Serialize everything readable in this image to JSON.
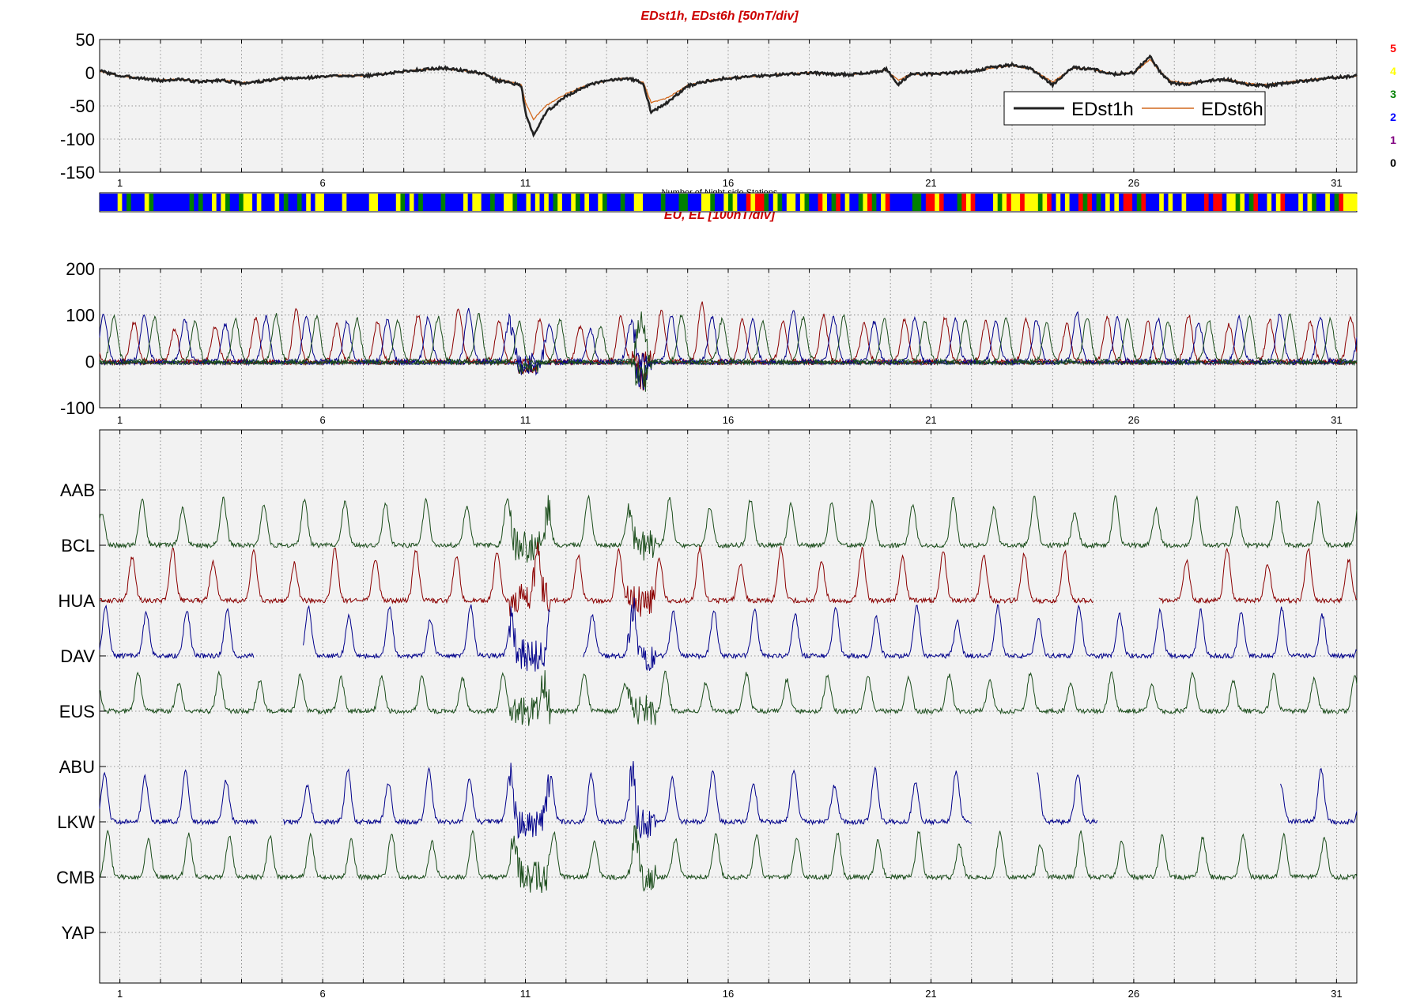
{
  "panels": {
    "dst": {
      "title": "EDst1h, EDst6h [50nT/div]",
      "ylim": [
        -150,
        50
      ],
      "yticks": [
        50,
        0,
        -50,
        -100,
        -150
      ],
      "legend": [
        "EDst1h",
        "EDst6h"
      ],
      "legend_position": "top-right"
    },
    "colorbar": {
      "caption": "Number of Night-side Stations",
      "scale_labels": [
        "5",
        "4",
        "3",
        "2",
        "1",
        "0"
      ],
      "scale_colors": [
        "#ff0000",
        "#ffff00",
        "#008000",
        "#0000ff",
        "#800080",
        "#000000"
      ]
    },
    "eu": {
      "title": "EU, EL   [100nT/div]",
      "ylim": [
        -100,
        200
      ],
      "yticks": [
        200,
        100,
        0,
        -100
      ]
    },
    "stations": {
      "labels": [
        "AAB",
        "BCL",
        "HUA",
        "DAV",
        "EUS",
        "ABU",
        "LKW",
        "CMB",
        "YAP"
      ]
    }
  },
  "x_axis": {
    "range": [
      0.5,
      31.5
    ],
    "tick_labels": [
      "1",
      "6",
      "11",
      "16",
      "21",
      "26",
      "31"
    ]
  },
  "chart_data": [
    {
      "type": "line",
      "title": "EDst1h, EDst6h [50nT/div]",
      "x_unit": "day",
      "xlim": [
        0.5,
        31.5
      ],
      "ylim": [
        -150,
        50
      ],
      "grid": true,
      "legend": "top-right",
      "series": [
        {
          "name": "EDst1h",
          "color": "#222222",
          "x": [
            0.5,
            1,
            1.5,
            2,
            2.5,
            3,
            3.5,
            4,
            4.5,
            5,
            5.5,
            6,
            6.5,
            7,
            7.5,
            8,
            8.5,
            9,
            9.5,
            10,
            10.3,
            10.6,
            10.9,
            11.0,
            11.2,
            11.5,
            12,
            12.5,
            13,
            13.5,
            13.9,
            14.1,
            14.5,
            15,
            15.5,
            16,
            16.5,
            17,
            17.5,
            18,
            18.5,
            19,
            19.5,
            19.9,
            20.2,
            20.5,
            21,
            21.5,
            22,
            22.5,
            23,
            23.5,
            24,
            24.5,
            25,
            25.5,
            26,
            26.4,
            26.6,
            26.9,
            27.3,
            27.8,
            28.3,
            28.8,
            29.3,
            29.8,
            30.3,
            30.8,
            31.5
          ],
          "y": [
            3,
            -5,
            -8,
            -12,
            -10,
            -14,
            -11,
            -16,
            -13,
            -9,
            -8,
            -6,
            -4,
            -5,
            -2,
            2,
            5,
            7,
            3,
            -2,
            -12,
            -14,
            -20,
            -60,
            -95,
            -60,
            -35,
            -20,
            -12,
            -8,
            -15,
            -60,
            -45,
            -20,
            -12,
            -8,
            -6,
            -4,
            -2,
            0,
            -2,
            -3,
            0,
            5,
            -18,
            -2,
            -2,
            0,
            2,
            8,
            12,
            5,
            -18,
            8,
            5,
            -2,
            0,
            25,
            5,
            -15,
            -18,
            -12,
            -10,
            -18,
            -20,
            -15,
            -12,
            -8,
            -5
          ]
        },
        {
          "name": "EDst6h",
          "color": "#d2691e",
          "x": [
            0.5,
            1,
            1.5,
            2,
            2.5,
            3,
            3.5,
            4,
            4.5,
            5,
            5.5,
            6,
            6.5,
            7,
            7.5,
            8,
            8.5,
            9,
            9.5,
            10,
            10.3,
            10.6,
            10.9,
            11.0,
            11.2,
            11.5,
            12,
            12.5,
            13,
            13.5,
            13.9,
            14.1,
            14.5,
            15,
            15.5,
            16,
            16.5,
            17,
            17.5,
            18,
            18.5,
            19,
            19.5,
            19.9,
            20.2,
            20.5,
            21,
            21.5,
            22,
            22.5,
            23,
            23.5,
            24,
            24.5,
            25,
            25.5,
            26,
            26.4,
            26.6,
            26.9,
            27.3,
            27.8,
            28.3,
            28.8,
            29.3,
            29.8,
            30.3,
            30.8,
            31.5
          ],
          "y": [
            2,
            -5,
            -8,
            -11,
            -10,
            -13,
            -11,
            -15,
            -13,
            -9,
            -8,
            -6,
            -4,
            -5,
            -2,
            2,
            5,
            6,
            3,
            -2,
            -10,
            -13,
            -18,
            -45,
            -70,
            -50,
            -32,
            -19,
            -12,
            -8,
            -14,
            -45,
            -38,
            -19,
            -12,
            -8,
            -6,
            -4,
            -2,
            0,
            -2,
            -3,
            0,
            4,
            -12,
            -2,
            -2,
            0,
            2,
            7,
            11,
            5,
            -14,
            7,
            5,
            -2,
            0,
            20,
            5,
            -12,
            -16,
            -12,
            -10,
            -16,
            -18,
            -14,
            -11,
            -8,
            -5
          ]
        }
      ]
    },
    {
      "type": "line",
      "title": "EU, EL   [100nT/div]",
      "x_unit": "day",
      "xlim": [
        0.5,
        31.5
      ],
      "ylim": [
        -100,
        200
      ],
      "grid": true,
      "series_note": "daily EU peaks of roughly 60-120 nT near local noon of each sector; EL near 0 with dips around days 11 and 14",
      "series": [
        {
          "color": "#8b0000",
          "daily_peak_phase": 0.35,
          "peaks": [
            85,
            70,
            75,
            95,
            110,
            80,
            85,
            100,
            115,
            85,
            90,
            75,
            95,
            110,
            125,
            90,
            85,
            100,
            80,
            90,
            95,
            85,
            90,
            80,
            95,
            85,
            100,
            80,
            90,
            85,
            95
          ]
        },
        {
          "color": "#00008b",
          "daily_peak_phase": 0.6,
          "peaks": [
            100,
            90,
            80,
            95,
            100,
            85,
            90,
            95,
            110,
            90,
            80,
            70,
            85,
            100,
            95,
            90,
            110,
            95,
            85,
            95,
            90,
            85,
            90,
            105,
            95,
            90,
            85,
            95,
            100,
            95,
            90
          ]
        },
        {
          "color": "#1b4d1b",
          "daily_peak_phase": 0.85,
          "peaks": [
            95,
            85,
            90,
            100,
            95,
            90,
            85,
            95,
            100,
            85,
            90,
            75,
            95,
            100,
            90,
            85,
            95,
            100,
            90,
            85,
            90,
            95,
            85,
            95,
            90,
            85,
            90,
            95,
            100,
            90,
            95
          ]
        }
      ]
    },
    {
      "type": "line",
      "title": "",
      "x_unit": "day",
      "xlim": [
        0.5,
        31.5
      ],
      "grid": true,
      "stacked_stations": [
        "AAB",
        "BCL",
        "HUA",
        "DAV",
        "EUS",
        "ABU",
        "LKW",
        "CMB",
        "YAP"
      ],
      "series": [
        {
          "station": "BCL",
          "color": "#1b4d1b",
          "phase": 0.55,
          "amplitude": 100
        },
        {
          "station": "HUA",
          "color": "#8b0000",
          "phase": 0.3,
          "amplitude": 110,
          "gaps": [
            [
              25.0,
              26.6
            ]
          ]
        },
        {
          "station": "DAV",
          "color": "#00008b",
          "phase": 0.65,
          "amplitude": 105,
          "gaps": [
            [
              4.3,
              5.5
            ],
            [
              11.6,
              12.4
            ]
          ]
        },
        {
          "station": "EUS",
          "color": "#1b4d1b",
          "phase": 0.45,
          "amplitude": 80
        },
        {
          "station": "LKW",
          "color": "#00008b",
          "phase": 0.62,
          "amplitude": 110,
          "gaps": [
            [
              4.4,
              5.0
            ],
            [
              22.0,
              23.6
            ],
            [
              25.1,
              29.6
            ]
          ]
        },
        {
          "station": "CMB",
          "color": "#1b4d1b",
          "phase": 0.7,
          "amplitude": 95
        }
      ]
    }
  ]
}
